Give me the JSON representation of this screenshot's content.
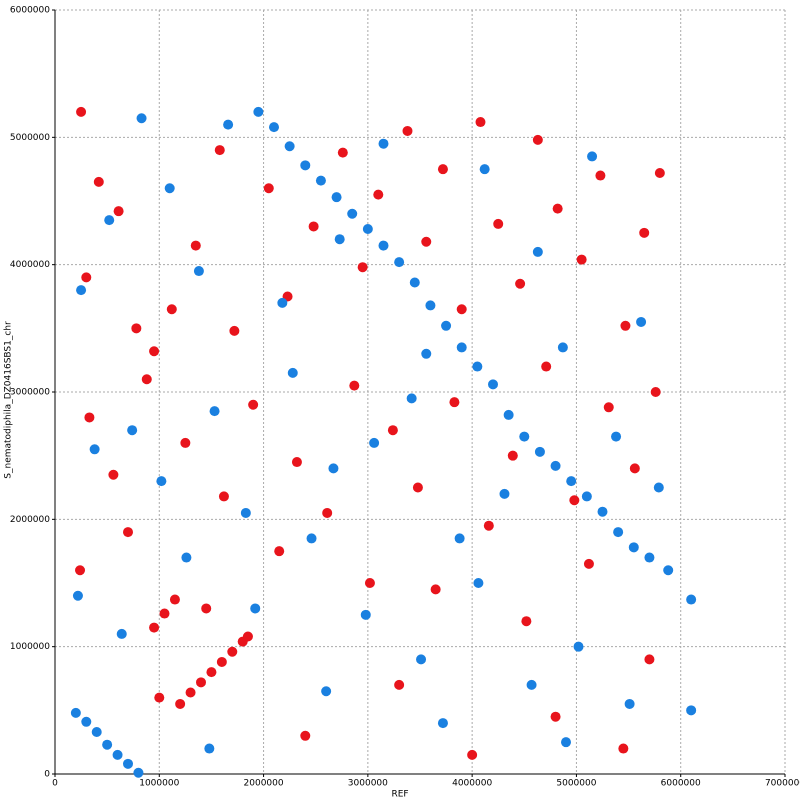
{
  "chart_data": {
    "type": "scatter",
    "x_label": "REF",
    "y_label": "S_nematodiphila_DZ0416SBS1_chr",
    "xlim": [
      0,
      7000000
    ],
    "ylim": [
      0,
      6000000
    ],
    "xticks": [
      0,
      1000000,
      2000000,
      3000000,
      4000000,
      5000000,
      6000000,
      7000000
    ],
    "yticks": [
      0,
      1000000,
      2000000,
      3000000,
      4000000,
      5000000,
      6000000
    ],
    "grid": true,
    "series": [
      {
        "color": "#e8141c",
        "x": [
          1200000,
          1300000,
          1400000,
          1500000,
          1600000,
          1700000,
          1800000,
          1850000,
          950000,
          1050000,
          1150000,
          250000,
          420000,
          610000,
          300000,
          780000,
          950000,
          1120000,
          1350000,
          1580000,
          1720000,
          2050000,
          2230000,
          2480000,
          2760000,
          2950000,
          3100000,
          3380000,
          3560000,
          3720000,
          3900000,
          4080000,
          4250000,
          4460000,
          4630000,
          4820000,
          5050000,
          5230000,
          5470000,
          5650000,
          5800000,
          330000,
          560000,
          880000,
          1250000,
          1620000,
          1900000,
          2320000,
          2610000,
          2870000,
          3240000,
          3480000,
          3830000,
          4160000,
          4390000,
          4710000,
          4980000,
          5310000,
          5560000,
          5760000,
          240000,
          700000,
          1450000,
          2150000,
          3020000,
          3650000,
          4520000,
          5120000,
          5700000,
          2400000,
          3300000,
          4000000,
          1000000,
          4800000,
          5450000
        ],
        "y": [
          550000,
          640000,
          720000,
          800000,
          880000,
          960000,
          1040000,
          1080000,
          1150000,
          1260000,
          1370000,
          5200000,
          4650000,
          4420000,
          3900000,
          3500000,
          3320000,
          3650000,
          4150000,
          4900000,
          3480000,
          4600000,
          3750000,
          4300000,
          4880000,
          3980000,
          4550000,
          5050000,
          4180000,
          4750000,
          3650000,
          5120000,
          4320000,
          3850000,
          4980000,
          4440000,
          4040000,
          4700000,
          3520000,
          4250000,
          4720000,
          2800000,
          2350000,
          3100000,
          2600000,
          2180000,
          2900000,
          2450000,
          2050000,
          3050000,
          2700000,
          2250000,
          2920000,
          1950000,
          2500000,
          3200000,
          2150000,
          2880000,
          2400000,
          3000000,
          1600000,
          1900000,
          1300000,
          1750000,
          1500000,
          1450000,
          1200000,
          1650000,
          900000,
          300000,
          700000,
          150000,
          600000,
          450000,
          200000
        ]
      },
      {
        "color": "#1a80e0",
        "x": [
          1950000,
          2100000,
          2250000,
          2400000,
          2550000,
          2700000,
          2850000,
          3000000,
          3150000,
          3300000,
          3450000,
          3600000,
          3750000,
          3900000,
          4050000,
          4200000,
          4350000,
          4500000,
          4650000,
          4800000,
          4950000,
          5100000,
          5250000,
          5400000,
          5550000,
          5700000,
          5880000,
          200000,
          300000,
          400000,
          500000,
          600000,
          700000,
          800000,
          6100000,
          6100000,
          250000,
          520000,
          830000,
          1100000,
          1380000,
          1660000,
          2180000,
          2730000,
          3150000,
          3560000,
          4120000,
          4630000,
          5150000,
          5620000,
          380000,
          740000,
          1020000,
          1530000,
          1830000,
          2280000,
          2670000,
          3060000,
          3420000,
          3880000,
          4310000,
          4870000,
          5380000,
          5790000,
          220000,
          640000,
          1260000,
          1920000,
          2460000,
          2980000,
          3510000,
          4060000,
          4570000,
          5020000,
          5510000,
          1480000,
          3720000,
          2600000,
          4900000
        ],
        "y": [
          5200000,
          5080000,
          4930000,
          4780000,
          4660000,
          4530000,
          4400000,
          4280000,
          4150000,
          4020000,
          3860000,
          3680000,
          3520000,
          3350000,
          3200000,
          3060000,
          2820000,
          2650000,
          2530000,
          2420000,
          2300000,
          2180000,
          2060000,
          1900000,
          1780000,
          1700000,
          1600000,
          480000,
          410000,
          330000,
          230000,
          150000,
          80000,
          10000,
          1370000,
          500000,
          3800000,
          4350000,
          5150000,
          4600000,
          3950000,
          5100000,
          3700000,
          4200000,
          4950000,
          3300000,
          4750000,
          4100000,
          4850000,
          3550000,
          2550000,
          2700000,
          2300000,
          2850000,
          2050000,
          3150000,
          2400000,
          2600000,
          2950000,
          1850000,
          2200000,
          3350000,
          2650000,
          2250000,
          1400000,
          1100000,
          1700000,
          1300000,
          1850000,
          1250000,
          900000,
          1500000,
          700000,
          1000000,
          550000,
          200000,
          400000,
          650000,
          250000
        ]
      }
    ]
  }
}
